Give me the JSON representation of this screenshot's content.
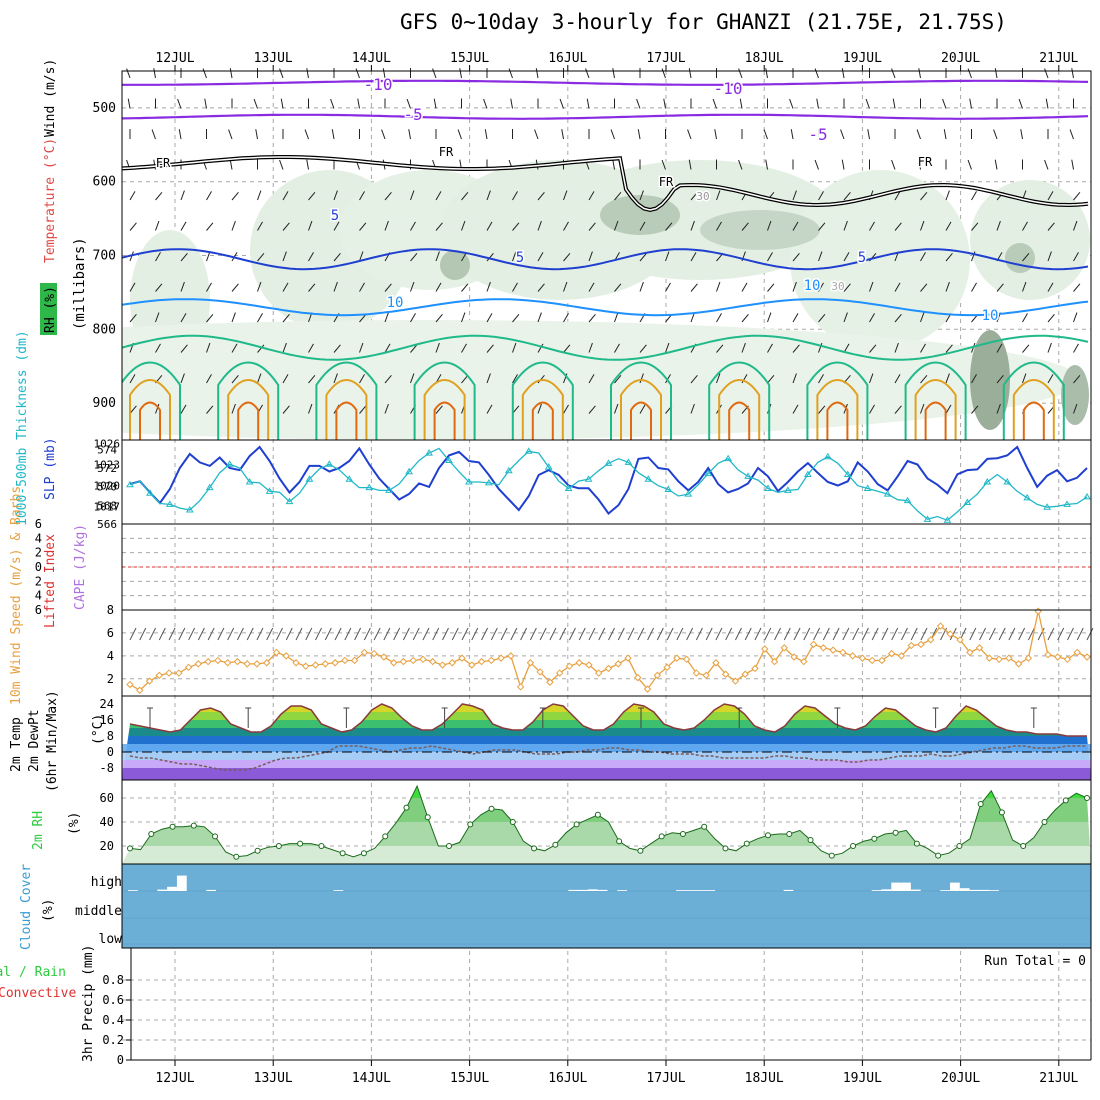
{
  "title": "GFS 0~10day 3-hourly for GHANZI (21.75E, 21.75S)",
  "dates": [
    "12JUL",
    "13JUL",
    "14JUL",
    "15JUL",
    "16JUL",
    "17JUL",
    "18JUL",
    "19JUL",
    "20JUL",
    "21JUL"
  ],
  "colors": {
    "purple": "#8a2be2",
    "blue": "#1f3fd0",
    "lightblue": "#1e90ff",
    "green": "#1fb98a",
    "orange": "#e0a020",
    "darkorange": "#e06a10",
    "cyan": "#20b8c8",
    "tan": "#e8a040",
    "rhgreen": "#2ecc40",
    "cloud": "#6baed6",
    "red": "#e03030",
    "violet": "#b070e0"
  },
  "chart_data": [
    {
      "type": "heatmap",
      "name": "upper-air",
      "ylabel_parts": [
        "RH (%)",
        "Temperature (°C)",
        "Wind (m/s)"
      ],
      "yaxis_title": "(millibars)",
      "y_ticks": [
        "500",
        "600",
        "700",
        "800",
        "900"
      ],
      "contour_labels": [
        "-10",
        "-10",
        "-5",
        "-5",
        "FR",
        "FR",
        "FR",
        "FR",
        "5",
        "5",
        "5",
        "10",
        "10",
        "10",
        "30",
        "30"
      ]
    },
    {
      "type": "line",
      "name": "thickness-slp",
      "ylabel_left": "1000-500mb Thickness (dm)",
      "ylabel_right": "SLP (mb)",
      "left_ticks": [
        "574",
        "572",
        "570",
        "568",
        "566"
      ],
      "right_ticks": [
        "1026",
        "1023",
        "1020",
        "1017"
      ],
      "series": [
        {
          "name": "SLP (mb)",
          "axis": "right",
          "ylim": [
            1014.5,
            1026.5
          ],
          "values": [
            1020.2,
            1020.6,
            1019,
            1017.5,
            1019.5,
            1022.5,
            1024.5,
            1023.3,
            1022.8,
            1024,
            1022.5,
            1022.2,
            1024.2,
            1025.5,
            1023.5,
            1021,
            1019,
            1020.5,
            1022.8,
            1022.8,
            1022,
            1022.5,
            1023.5,
            1025.3,
            1023,
            1021,
            1019.5,
            1018,
            1018.8,
            1020.3,
            1019.8,
            1022.5,
            1024.3,
            1024.8,
            1023.5,
            1023.3,
            1021.5,
            1019.5,
            1018,
            1016.5,
            1018.5,
            1021.5,
            1022.2,
            1021.5,
            1020,
            1019.6,
            1019.6,
            1018,
            1016,
            1017.2,
            1019.5,
            1023.8,
            1024,
            1022.5,
            1022.3,
            1020.6,
            1019.3,
            1020.5,
            1022.5,
            1020.2,
            1019,
            1019.5,
            1020.3,
            1022.5,
            1021.3,
            1019.2,
            1020.5,
            1022,
            1023.2,
            1021.8,
            1020.5,
            1020,
            1020.6,
            1023.3,
            1022,
            1020.2,
            1019.3,
            1021.3,
            1023.5,
            1023,
            1021,
            1020.1,
            1018.9,
            1021.6,
            1022.2,
            1022.3,
            1023.8,
            1023.9,
            1024.3,
            1025.5,
            1022.5,
            1019.8,
            1021.4,
            1022.2,
            1020.6,
            1021.1,
            1022.5
          ]
        },
        {
          "name": "1000-500mb Thickness (dm)",
          "axis": "left",
          "ylim": [
            566,
            575
          ],
          "values": [
            570.2,
            570.6,
            569.3,
            568.2,
            568.1,
            567.7,
            567.5,
            568.5,
            569.9,
            571.5,
            572.4,
            572,
            570.5,
            570.4,
            569.5,
            569.4,
            568.4,
            569.3,
            570.8,
            571.9,
            572.4,
            571.8,
            570.8,
            569.9,
            569.9,
            569.6,
            569.6,
            570.3,
            571.6,
            572.8,
            573.6,
            574.1,
            572.8,
            571.6,
            570.5,
            570.5,
            570.4,
            570.2,
            571.7,
            572.8,
            573.8,
            573.6,
            572.1,
            570.6,
            569.8,
            570.6,
            570.8,
            571.7,
            572.5,
            573,
            572.6,
            571.5,
            570.8,
            570.1,
            569.7,
            569,
            569.2,
            570.2,
            571.4,
            572.5,
            573,
            571.8,
            571.1,
            570.7,
            569.8,
            569.4,
            569.6,
            569.7,
            571.3,
            572.6,
            573.2,
            572.5,
            571.3,
            570.1,
            569.8,
            569.5,
            569.2,
            568.6,
            568.5,
            567.4,
            566.5,
            566.8,
            566.4,
            567.3,
            568.3,
            569.2,
            570.5,
            571.3,
            570.5,
            569.5,
            568.8,
            568.1,
            567.8,
            567.9,
            568.1,
            568.2,
            568.9
          ]
        }
      ]
    },
    {
      "type": "line",
      "name": "lifted-cape",
      "ylabel_parts": [
        "Lifted Index",
        "CAPE (J/kg)"
      ],
      "y_ticks": [
        "6",
        "4",
        "2",
        "0",
        "2",
        "4",
        "6"
      ],
      "zero_line": 0
    },
    {
      "type": "line",
      "name": "wind10m",
      "ylabel": "10m Wind Speed (m/s) & Barbs",
      "y_ticks": [
        "8",
        "6",
        "4",
        "2"
      ],
      "ylim": [
        0.5,
        8
      ],
      "series": [
        {
          "name": "10m Wind Speed",
          "values": [
            1.5,
            1,
            1.8,
            2.3,
            2.5,
            2.5,
            3,
            3.3,
            3.5,
            3.6,
            3.4,
            3.5,
            3.3,
            3.3,
            3.4,
            4.3,
            4,
            3.4,
            3.1,
            3.2,
            3.3,
            3.4,
            3.6,
            3.6,
            4.3,
            4.2,
            3.9,
            3.4,
            3.5,
            3.6,
            3.7,
            3.5,
            3.2,
            3.4,
            3.8,
            3.2,
            3.5,
            3.6,
            3.8,
            4,
            1.3,
            3.4,
            2.6,
            1.7,
            2.5,
            3.1,
            3.4,
            3.2,
            2.5,
            2.9,
            3.3,
            3.8,
            2.1,
            1.1,
            2.3,
            3,
            3.8,
            3.7,
            2.5,
            2.3,
            3.4,
            2.4,
            1.8,
            2.4,
            2.9,
            4.6,
            3.5,
            4.7,
            3.9,
            3.5,
            5,
            4.7,
            4.5,
            4.3,
            4,
            3.8,
            3.6,
            3.6,
            4.2,
            4,
            4.9,
            5,
            5.4,
            6.6,
            5.9,
            5.4,
            4.3,
            4.7,
            3.8,
            3.7,
            3.8,
            3.3,
            3.8,
            7.9,
            4.1,
            3.9,
            3.7,
            4.3,
            3.9
          ]
        }
      ]
    },
    {
      "type": "area",
      "name": "temp2m",
      "ylabel": "2m Temp 2m DewPt (6hr Min/Max) (°C)",
      "y_ticks": [
        "24",
        "16",
        "8",
        "0",
        "-8"
      ],
      "ylim": [
        -14,
        28
      ],
      "series": [
        {
          "name": "2m Temp",
          "values": [
            14,
            13,
            12,
            11,
            10,
            11,
            16,
            21,
            22,
            20,
            14,
            12,
            10,
            10,
            13,
            19,
            23,
            23,
            21,
            14,
            12,
            10,
            11,
            15,
            21,
            24,
            22,
            17,
            13,
            11,
            11,
            14,
            19,
            24,
            23,
            21,
            14,
            12,
            11,
            11,
            15,
            21,
            24,
            23,
            18,
            13,
            11,
            11,
            14,
            20,
            24,
            23,
            20,
            14,
            12,
            11,
            12,
            16,
            21,
            24,
            23,
            19,
            13,
            11,
            10,
            13,
            19,
            23,
            22,
            18,
            14,
            12,
            11,
            13,
            18,
            22,
            21,
            17,
            13,
            11,
            10,
            12,
            18,
            23,
            21,
            17,
            13,
            11,
            10,
            10,
            9,
            9,
            9,
            8,
            8,
            8
          ]
        },
        {
          "name": "2m DewPt",
          "values": [
            -2,
            -3,
            -3,
            -4,
            -5,
            -6,
            -6,
            -7,
            -8,
            -9,
            -9,
            -9,
            -8,
            -6,
            -4,
            -3,
            -3,
            -2,
            -1,
            0,
            3,
            3,
            3,
            2,
            1,
            0,
            1,
            2,
            2,
            3,
            2,
            1,
            0,
            -1,
            0,
            1,
            1,
            1,
            0,
            -1,
            -1,
            -1,
            0,
            0,
            1,
            1,
            2,
            2,
            1,
            1,
            0,
            0,
            -1,
            -1,
            -1,
            -2,
            -2,
            -3,
            -3,
            -3,
            -3,
            -3,
            -2,
            -2,
            -3,
            -3,
            -4,
            -4,
            -4,
            -5,
            -5,
            -4,
            -4,
            -3,
            -2,
            -2,
            -2,
            -1,
            -2,
            -2,
            -1,
            0,
            1,
            2,
            2,
            3,
            3,
            2,
            2,
            2,
            3,
            3,
            3
          ]
        }
      ]
    },
    {
      "type": "area",
      "name": "rh2m",
      "ylabel": "2m RH (%)",
      "y_ticks": [
        "60",
        "40",
        "20"
      ],
      "ylim": [
        5,
        75
      ],
      "series": [
        {
          "name": "2m RH",
          "values": [
            18,
            17,
            30,
            34,
            36,
            36,
            37,
            36,
            28,
            15,
            11,
            12,
            16,
            19,
            20,
            22,
            22,
            22,
            20,
            17,
            14,
            11,
            14,
            18,
            28,
            39,
            52,
            70,
            44,
            20,
            20,
            23,
            38,
            46,
            51,
            50,
            40,
            24,
            18,
            16,
            21,
            31,
            38,
            42,
            46,
            40,
            24,
            18,
            16,
            22,
            28,
            31,
            30,
            33,
            36,
            26,
            18,
            16,
            22,
            26,
            29,
            30,
            30,
            33,
            25,
            16,
            12,
            14,
            20,
            24,
            26,
            30,
            31,
            33,
            22,
            18,
            12,
            14,
            20,
            26,
            55,
            66,
            48,
            25,
            20,
            27,
            40,
            50,
            58,
            64,
            60
          ]
        }
      ]
    },
    {
      "type": "bar",
      "name": "cloud",
      "ylabel": "Cloud Cover (%)",
      "y_ticks": [
        "high",
        "middle",
        "low"
      ],
      "series": [
        {
          "name": "high cloud",
          "values": [
            3,
            0,
            0,
            5,
            15,
            55,
            0,
            0,
            4,
            0,
            0,
            0,
            0,
            0,
            0,
            0,
            0,
            0,
            0,
            0,
            0,
            3,
            0,
            0,
            0,
            0,
            0,
            0,
            0,
            0,
            0,
            0,
            0,
            0,
            0,
            0,
            0,
            0,
            0,
            0,
            0,
            0,
            0,
            0,
            0,
            4,
            4,
            6,
            4,
            0,
            3,
            0,
            0,
            0,
            0,
            0,
            3,
            3,
            3,
            3,
            0,
            0,
            0,
            0,
            0,
            0,
            0,
            4,
            0,
            0,
            0,
            0,
            0,
            0,
            0,
            0,
            3,
            6,
            30,
            30,
            5,
            0,
            0,
            3,
            30,
            10,
            4,
            4,
            3,
            0,
            0,
            0,
            0,
            0,
            0,
            0,
            0,
            0
          ]
        }
      ]
    },
    {
      "type": "bar",
      "name": "precip",
      "ylabel": "3hr Precip (mm)",
      "ylabel_side_parts": [
        "Total / Rain",
        "Convective"
      ],
      "y_ticks": [
        "0.8",
        "0.6",
        "0.4",
        "0.2",
        "0"
      ],
      "ylim": [
        0,
        1
      ],
      "run_total": "Run Total = 0",
      "series": [
        {
          "name": "3hr Precip",
          "values": []
        }
      ]
    }
  ]
}
